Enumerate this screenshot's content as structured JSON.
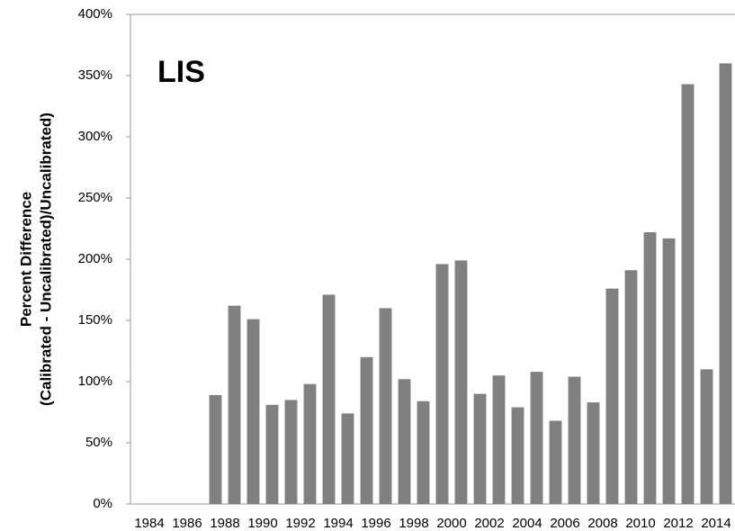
{
  "chart_data": {
    "type": "bar",
    "annotation": "LIS",
    "ylabel": [
      "Percent Difference",
      "(Calibrated - Uncalibrated)/Uncalibrated)"
    ],
    "categories": [
      "1984",
      null,
      "1986",
      null,
      "1988",
      null,
      "1990",
      null,
      "1992",
      null,
      "1994",
      null,
      "1996",
      null,
      "1998",
      null,
      "2000",
      null,
      "2002",
      null,
      "2004",
      null,
      "2006",
      null,
      "2008",
      null,
      "2010",
      null,
      "2012",
      null,
      "2014",
      null
    ],
    "values": [
      null,
      null,
      null,
      null,
      89,
      162,
      151,
      81,
      85,
      98,
      171,
      74,
      120,
      160,
      102,
      84,
      196,
      199,
      90,
      105,
      79,
      108,
      68,
      104,
      83,
      176,
      191,
      222,
      217,
      343,
      110,
      360
    ],
    "color": "#808080",
    "ylim": [
      0,
      400
    ],
    "yticks": [
      {
        "value": 0,
        "label": "0%"
      },
      {
        "value": 50,
        "label": "50%"
      },
      {
        "value": 100,
        "label": "100%"
      },
      {
        "value": 150,
        "label": "150%"
      },
      {
        "value": 200,
        "label": "200%"
      },
      {
        "value": 250,
        "label": "250%"
      },
      {
        "value": 300,
        "label": "300%"
      },
      {
        "value": 350,
        "label": "350%"
      },
      {
        "value": 400,
        "label": "400%"
      }
    ]
  }
}
